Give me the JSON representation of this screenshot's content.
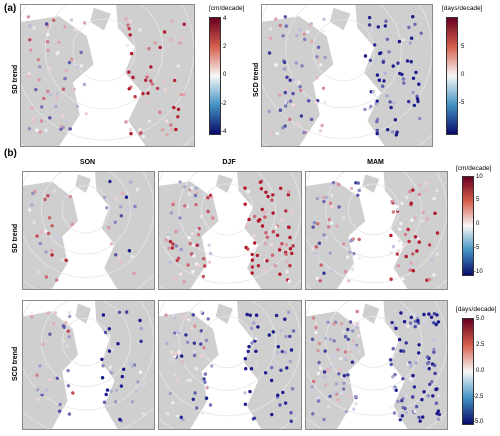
{
  "panel_a": {
    "label": "(a)",
    "left_map": {
      "row_label": "SD trend",
      "colorbar_title": "[cm/decade]",
      "ticks": [
        "4",
        "2",
        "0",
        "-2",
        "-4"
      ]
    },
    "right_map": {
      "row_label": "SCD trend",
      "colorbar_title": "[days/decade]",
      "ticks": [
        "5",
        "0",
        "-5"
      ]
    }
  },
  "panel_b": {
    "label": "(b)",
    "seasons": [
      "SON",
      "DJF",
      "MAM"
    ],
    "sd_row": {
      "row_label": "SD trend",
      "colorbar_title": "[cm/decade]",
      "ticks": [
        "10",
        "5",
        "0",
        "-5",
        "-10"
      ]
    },
    "scd_row": {
      "row_label": "SCD trend",
      "colorbar_title": "[days/decade]",
      "ticks": [
        "5.0",
        "2.5",
        "0.0",
        "-2.5",
        "-5.0"
      ]
    }
  },
  "colors": {
    "positive": "#b2182b",
    "neutral": "#f7f7f7",
    "negative": "#1a1a8c",
    "land": "#cfcfcf",
    "grid": "#e6e6e6"
  }
}
